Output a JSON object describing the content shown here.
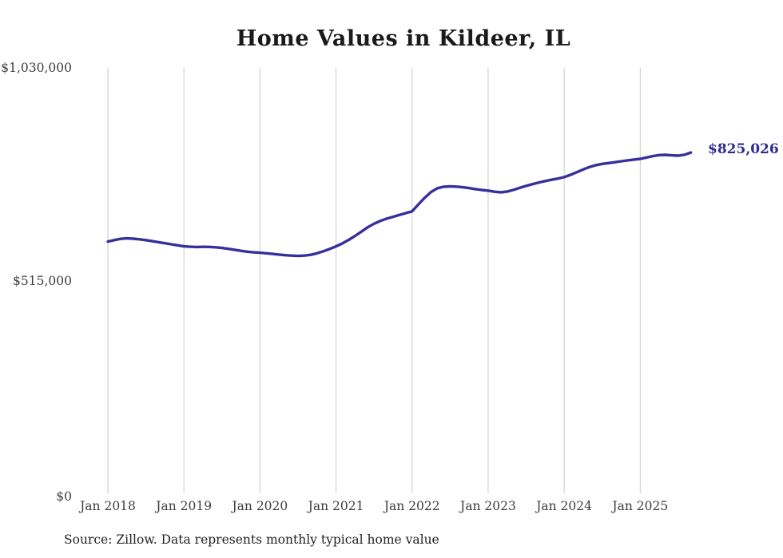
{
  "title": "Home Values in Kildeer, IL",
  "source_note": "Source: Zillow. Data represents monthly typical home value",
  "annotation": {
    "text": "$825,026",
    "value": 825026
  },
  "colors": {
    "line": "#37309b",
    "annotation_label": "#2e2a8e",
    "grid": "#c9c9c9",
    "axis_text": "#3d3d3d",
    "title_text": "#1a1a1a",
    "source_text": "#222222",
    "background": "#ffffff"
  },
  "chart_data": {
    "type": "line",
    "title": "Home Values in Kildeer, IL",
    "xlabel": "",
    "ylabel": "",
    "ylim": [
      0,
      1030000
    ],
    "grid": "vertical-january-only",
    "legend": "none",
    "y_ticks": [
      {
        "label": "$0",
        "value": 0
      },
      {
        "label": "$515,000",
        "value": 515000
      },
      {
        "label": "$1,030,000",
        "value": 1030000
      }
    ],
    "x_ticks": [
      {
        "label": "Jan 2018",
        "month_index": 0
      },
      {
        "label": "Jan 2019",
        "month_index": 12
      },
      {
        "label": "Jan 2020",
        "month_index": 24
      },
      {
        "label": "Jan 2021",
        "month_index": 36
      },
      {
        "label": "Jan 2022",
        "month_index": 48
      },
      {
        "label": "Jan 2023",
        "month_index": 60
      },
      {
        "label": "Jan 2024",
        "month_index": 72
      },
      {
        "label": "Jan 2025",
        "month_index": 84
      }
    ],
    "months": [
      "2018-01",
      "2018-02",
      "2018-03",
      "2018-04",
      "2018-05",
      "2018-06",
      "2018-07",
      "2018-08",
      "2018-09",
      "2018-10",
      "2018-11",
      "2018-12",
      "2019-01",
      "2019-02",
      "2019-03",
      "2019-04",
      "2019-05",
      "2019-06",
      "2019-07",
      "2019-08",
      "2019-09",
      "2019-10",
      "2019-11",
      "2019-12",
      "2020-01",
      "2020-02",
      "2020-03",
      "2020-04",
      "2020-05",
      "2020-06",
      "2020-07",
      "2020-08",
      "2020-09",
      "2020-10",
      "2020-11",
      "2020-12",
      "2021-01",
      "2021-02",
      "2021-03",
      "2021-04",
      "2021-05",
      "2021-06",
      "2021-07",
      "2021-08",
      "2021-09",
      "2021-10",
      "2021-11",
      "2021-12",
      "2022-01",
      "2022-02",
      "2022-03",
      "2022-04",
      "2022-05",
      "2022-06",
      "2022-07",
      "2022-08",
      "2022-09",
      "2022-10",
      "2022-11",
      "2022-12",
      "2023-01",
      "2023-02",
      "2023-03",
      "2023-04",
      "2023-05",
      "2023-06",
      "2023-07",
      "2023-08",
      "2023-09",
      "2023-10",
      "2023-11",
      "2023-12",
      "2024-01",
      "2024-02",
      "2024-03",
      "2024-04",
      "2024-05",
      "2024-06",
      "2024-07",
      "2024-08",
      "2024-09",
      "2024-10",
      "2024-11",
      "2024-12",
      "2025-01",
      "2025-02",
      "2025-03",
      "2025-04",
      "2025-05",
      "2025-06",
      "2025-07",
      "2025-08",
      "2025-09"
    ],
    "values": [
      609500,
      613000,
      616000,
      617200,
      616500,
      615000,
      613000,
      610500,
      608000,
      605500,
      603000,
      600500,
      597900,
      597000,
      596400,
      596800,
      596500,
      595500,
      594000,
      592000,
      589500,
      587000,
      585000,
      583500,
      582500,
      581000,
      579500,
      578000,
      576500,
      575500,
      574800,
      575500,
      577500,
      581000,
      586000,
      591500,
      597900,
      605000,
      613500,
      623000,
      633500,
      644000,
      652500,
      659500,
      665000,
      669500,
      674000,
      678300,
      682600,
      699500,
      715500,
      729500,
      738500,
      742300,
      743200,
      742500,
      741000,
      739000,
      736500,
      734300,
      732700,
      730000,
      728800,
      730500,
      734500,
      739500,
      744200,
      748500,
      752500,
      756000,
      759000,
      762000,
      765400,
      771000,
      777500,
      784000,
      790000,
      794500,
      797500,
      799500,
      801500,
      803900,
      806000,
      808000,
      809700,
      813000,
      816500,
      818800,
      819300,
      818200,
      817400,
      819800,
      825026
    ]
  }
}
